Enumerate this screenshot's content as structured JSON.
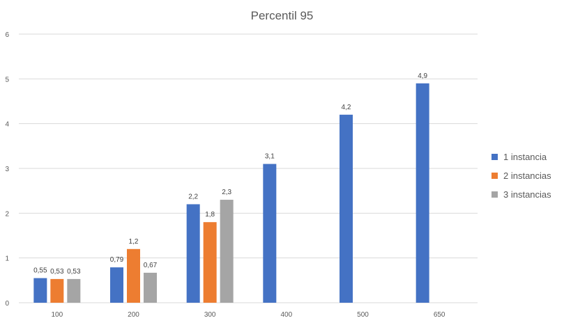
{
  "chart_data": {
    "type": "bar",
    "title": "Percentil 95",
    "xlabel": "",
    "ylabel": "",
    "categories": [
      "100",
      "200",
      "300",
      "400",
      "500",
      "650"
    ],
    "series": [
      {
        "name": "1 instancia",
        "color": "#4472C4",
        "values": [
          0.55,
          0.79,
          2.2,
          3.1,
          4.2,
          4.9
        ],
        "labels": [
          "0,55",
          "0,79",
          "2,2",
          "3,1",
          "4,2",
          "4,9"
        ]
      },
      {
        "name": "2 instancias",
        "color": "#ED7D31",
        "values": [
          0.53,
          1.2,
          1.8,
          null,
          null,
          null
        ],
        "labels": [
          "0,53",
          "1,2",
          "1,8",
          "",
          "",
          ""
        ]
      },
      {
        "name": "3 instancias",
        "color": "#A5A5A5",
        "values": [
          0.53,
          0.67,
          2.3,
          null,
          null,
          null
        ],
        "labels": [
          "0,53",
          "0,67",
          "2,3",
          "",
          "",
          ""
        ]
      }
    ],
    "ylim": [
      0,
      6
    ],
    "yticks": [
      "0",
      "1",
      "2",
      "3",
      "4",
      "5",
      "6"
    ],
    "grid": true,
    "legend": "right"
  }
}
